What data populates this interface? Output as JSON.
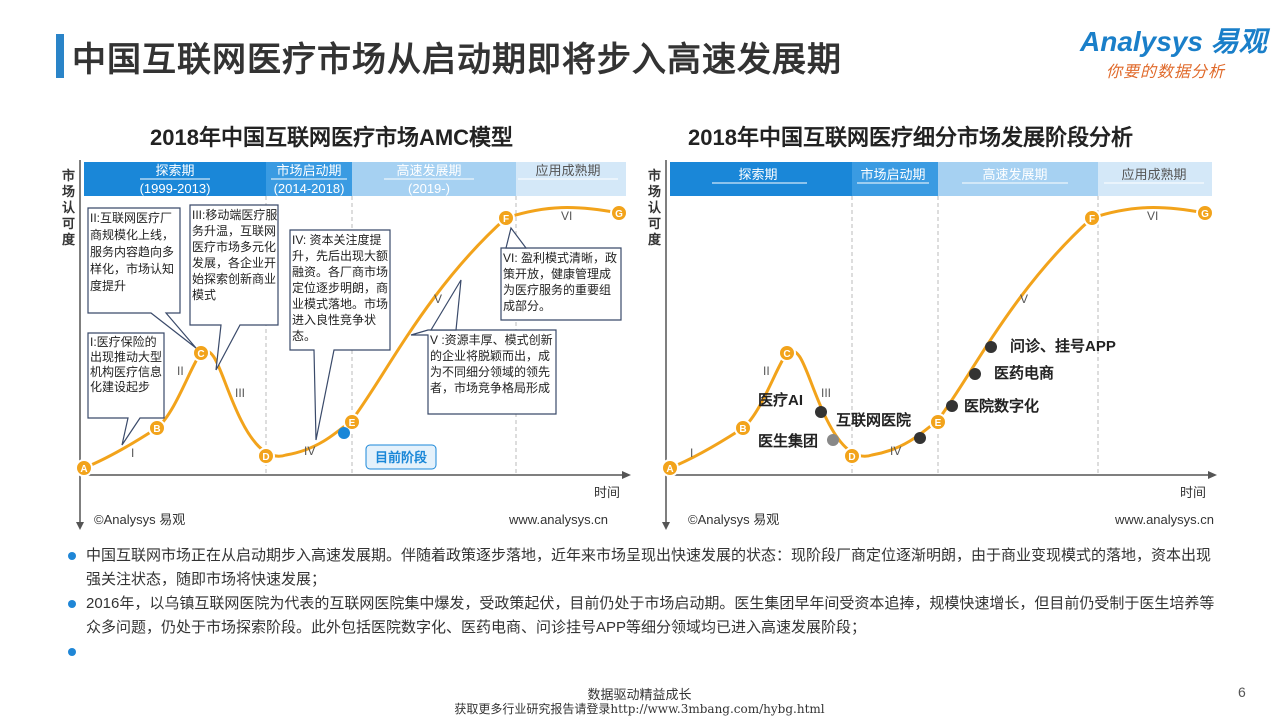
{
  "header": {
    "title": "中国互联网医疗市场从启动期即将步入高速发展期",
    "logo_text": "Analysys 易观",
    "logo_slogan": "你要的数据分析",
    "logo_color": "#1a7fc9",
    "slogan_color": "#e06a2b"
  },
  "left_chart": {
    "title": "2018年中国互联网医疗市场AMC模型",
    "y_axis_label": "市场认可度",
    "x_axis_label": "时间",
    "source": "©Analysys 易观",
    "site": "www.analysys.cn",
    "phases": [
      {
        "label": "探索期",
        "years": "(1999-2013)"
      },
      {
        "label": "市场启动期",
        "years": "(2014-2018)"
      },
      {
        "label": "高速发展期",
        "years": "(2019-)"
      },
      {
        "label": "应用成熟期",
        "years": ""
      }
    ],
    "points": [
      "A",
      "B",
      "C",
      "D",
      "E",
      "F",
      "G"
    ],
    "stages": [
      "I",
      "II",
      "III",
      "IV",
      "V",
      "VI"
    ],
    "callouts": {
      "c1": "I:医疗保险的出现推动大型机构医疗信息化建设起步",
      "c2": "II:互联网医疗厂商规模化上线，服务内容趋向多样化，市场认知度提升",
      "c3": "III:移动端医疗服务升温，互联网医疗市场多元化发展，各企业开始探索创新商业模式",
      "c4": "IV: 资本关注度提升，先后出现大额融资。各厂商市场定位逐步明朗，商业模式落地。市场进入良性竞争状态。",
      "c5": "V :资源丰厚、模式创新的企业将脱颖而出，成为不同细分领域的领先者，市场竞争格局形成",
      "c6": "VI: 盈利模式清晰，政策开放，健康管理成为医疗服务的重要组成部分。"
    },
    "current_stage_label": "目前阶段"
  },
  "right_chart": {
    "title": "2018年中国互联网医疗细分市场发展阶段分析",
    "y_axis_label": "市场认可度",
    "x_axis_label": "时间",
    "source": "©Analysys 易观",
    "site": "www.analysys.cn",
    "phases": [
      "探索期",
      "市场启动期",
      "高速发展期",
      "应用成熟期"
    ],
    "points": [
      "A",
      "B",
      "C",
      "D",
      "E",
      "F",
      "G"
    ],
    "stages": [
      "I",
      "II",
      "III",
      "IV",
      "V",
      "VI"
    ],
    "segments": [
      {
        "label": "医疗AI"
      },
      {
        "label": "互联网医院"
      },
      {
        "label": "医生集团"
      },
      {
        "label": "医院数字化"
      },
      {
        "label": "医药电商"
      },
      {
        "label": "问诊、挂号APP"
      }
    ]
  },
  "bullets": [
    "中国互联网市场正在从启动期步入高速发展期。伴随着政策逐步落地，近年来市场呈现出快速发展的状态：现阶段厂商定位逐渐明朗，由于商业变现模式的落地，资本出现强关注状态，随即市场将快速发展；",
    "2016年，以乌镇互联网医院为代表的互联网医院集中爆发，受政策起伏，目前仍处于市场启动期。医生集团早年间受资本追捧，规模快速增长，但目前仍受制于医生培养等众多问题，仍处于市场探索阶段。此外包括医院数字化、医药电商、问诊挂号APP等细分领域均已进入高速发展阶段；",
    ""
  ],
  "footer": {
    "slogan": "数据驱动精益成长",
    "notice": "获取更多行业研究报告请登录http://www.3mbang.com/hybg.html",
    "page_number": "6"
  },
  "colors": {
    "curve": "#f2a31b",
    "phase_dark": "#1a87d8",
    "phase_mid": "#5aace8",
    "phase_light": "#a6d1f2",
    "phase_pale": "#d4e8f8"
  }
}
